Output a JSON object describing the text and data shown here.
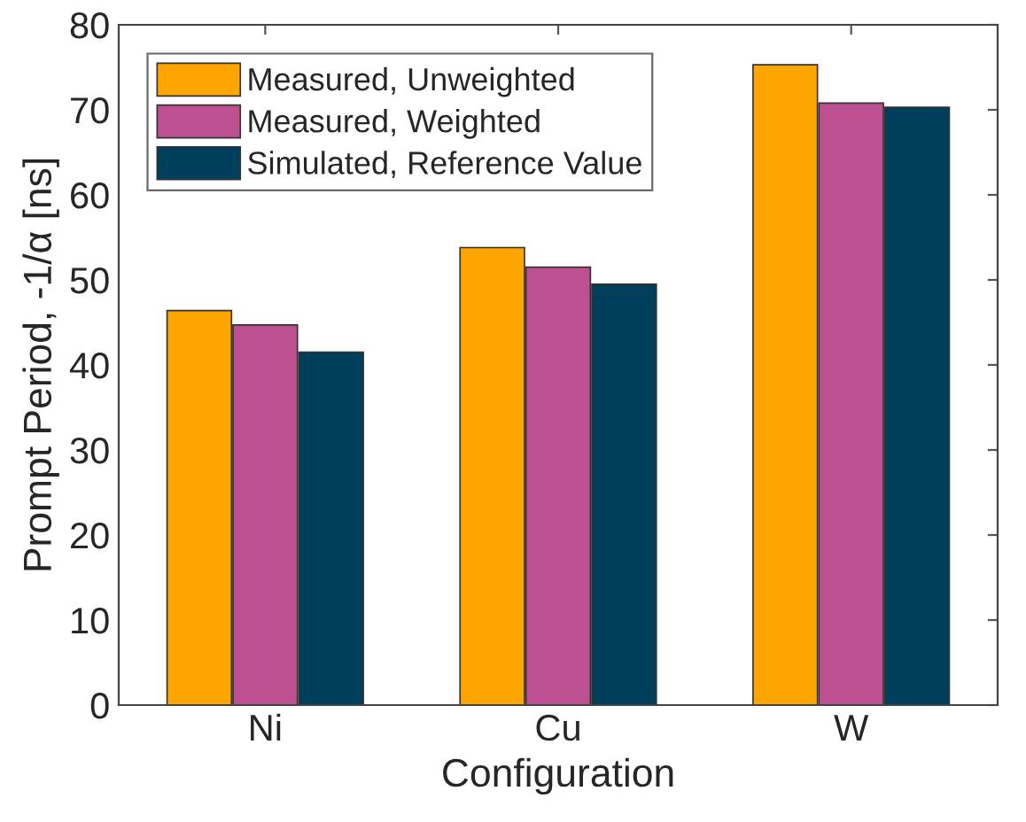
{
  "chart_data": {
    "type": "bar",
    "xlabel": "Configuration",
    "ylabel": "Prompt Period, -1/α [ns]",
    "categories": [
      "Ni",
      "Cu",
      "W"
    ],
    "series": [
      {
        "name": "Measured, Unweighted",
        "color": "#ffa500",
        "values": [
          46.4,
          53.8,
          75.3
        ]
      },
      {
        "name": "Measured, Weighted",
        "color": "#bc5090",
        "values": [
          44.7,
          51.5,
          70.8
        ]
      },
      {
        "name": "Simulated, Reference Value",
        "color": "#003f5c",
        "values": [
          41.5,
          49.5,
          70.3
        ]
      }
    ],
    "ylim": [
      0,
      80
    ],
    "yticks": [
      0,
      10,
      20,
      30,
      40,
      50,
      60,
      70,
      80
    ],
    "grid": false,
    "legend": "top left"
  }
}
